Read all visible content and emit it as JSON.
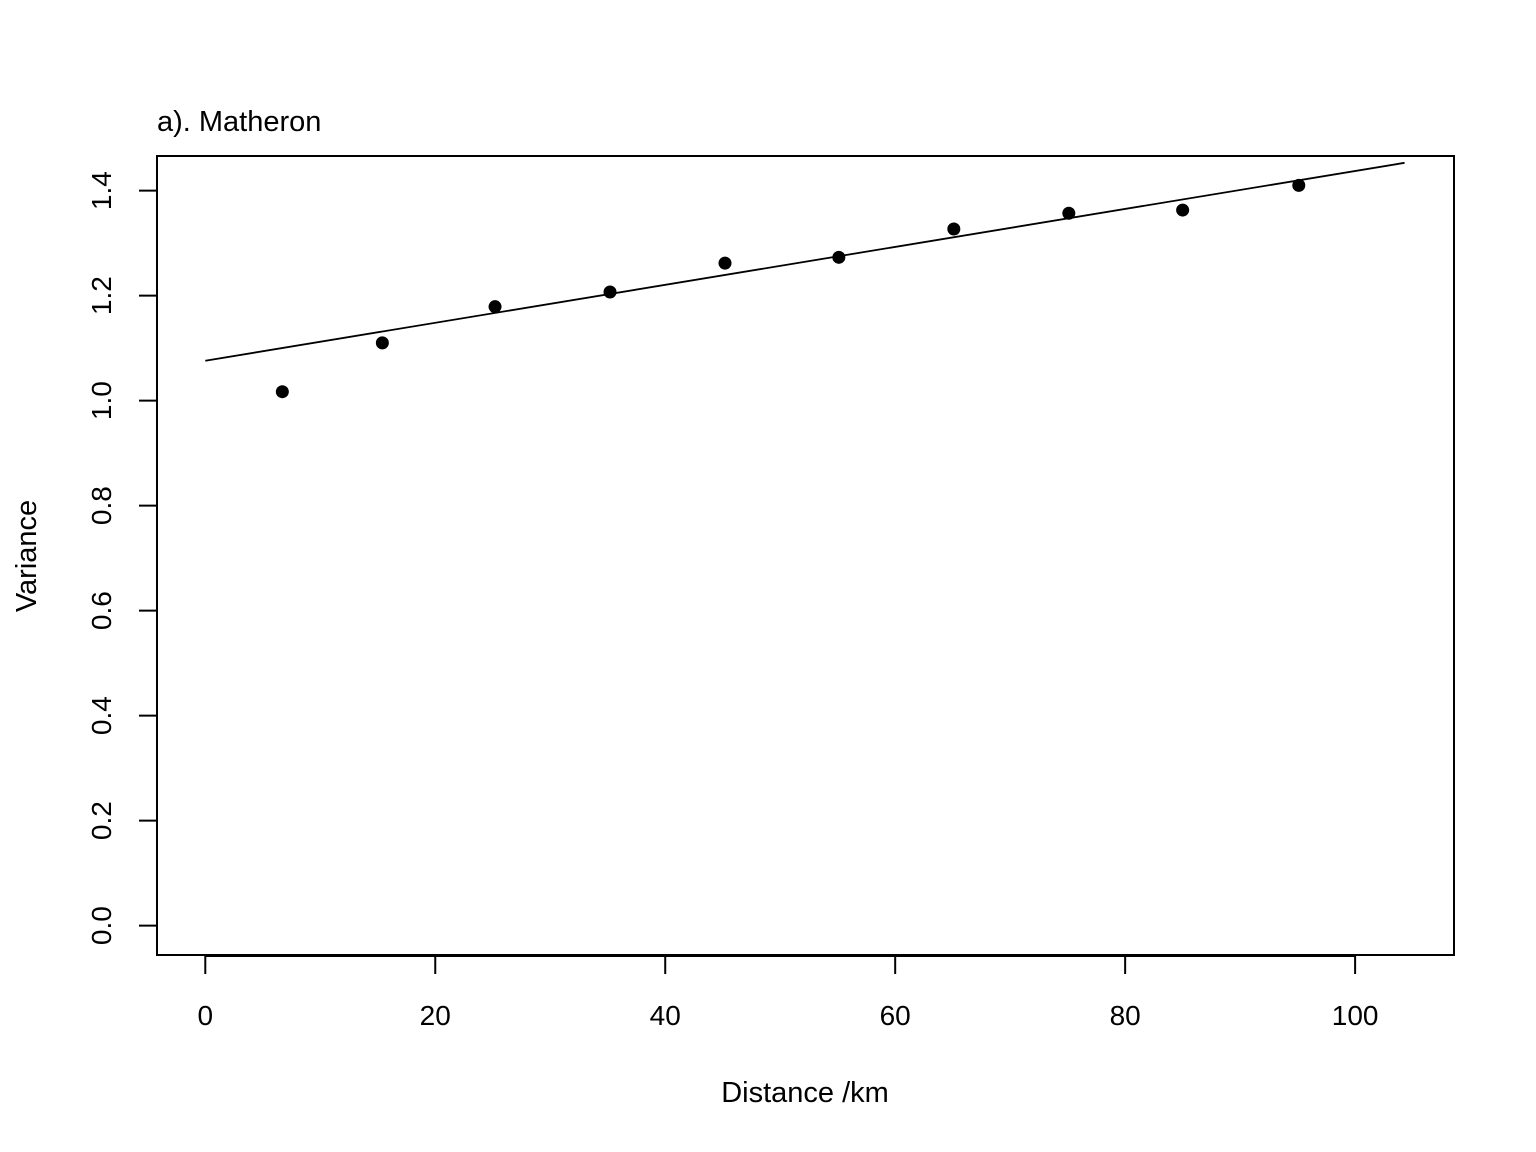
{
  "chart_data": {
    "type": "scatter",
    "title": "a). Matheron",
    "xlabel": "Distance /km",
    "ylabel": "Variance",
    "xlim": [
      -4.2,
      108.6
    ],
    "ylim": [
      -0.056,
      1.466
    ],
    "xticks": [
      0,
      20,
      40,
      60,
      80,
      100
    ],
    "xtick_labels": [
      "0",
      "20",
      "40",
      "60",
      "80",
      "100"
    ],
    "yticks": [
      0.0,
      0.2,
      0.4,
      0.6,
      0.8,
      1.0,
      1.2,
      1.4
    ],
    "ytick_labels": [
      "0.0",
      "0.2",
      "0.4",
      "0.6",
      "0.8",
      "1.0",
      "1.2",
      "1.4"
    ],
    "grid": false,
    "legend": "none",
    "series": [
      {
        "type": "scatter",
        "x": [
          6.7,
          15.4,
          25.2,
          35.2,
          45.2,
          55.1,
          65.1,
          75.1,
          85.0,
          95.1
        ],
        "y": [
          1.017,
          1.11,
          1.179,
          1.207,
          1.262,
          1.273,
          1.327,
          1.357,
          1.363,
          1.41
        ]
      },
      {
        "type": "line",
        "x": [
          0,
          104.3
        ],
        "y": [
          1.076,
          1.453
        ]
      }
    ],
    "colors": {
      "points": "#000000",
      "line": "#000000",
      "frame": "#000000"
    }
  }
}
